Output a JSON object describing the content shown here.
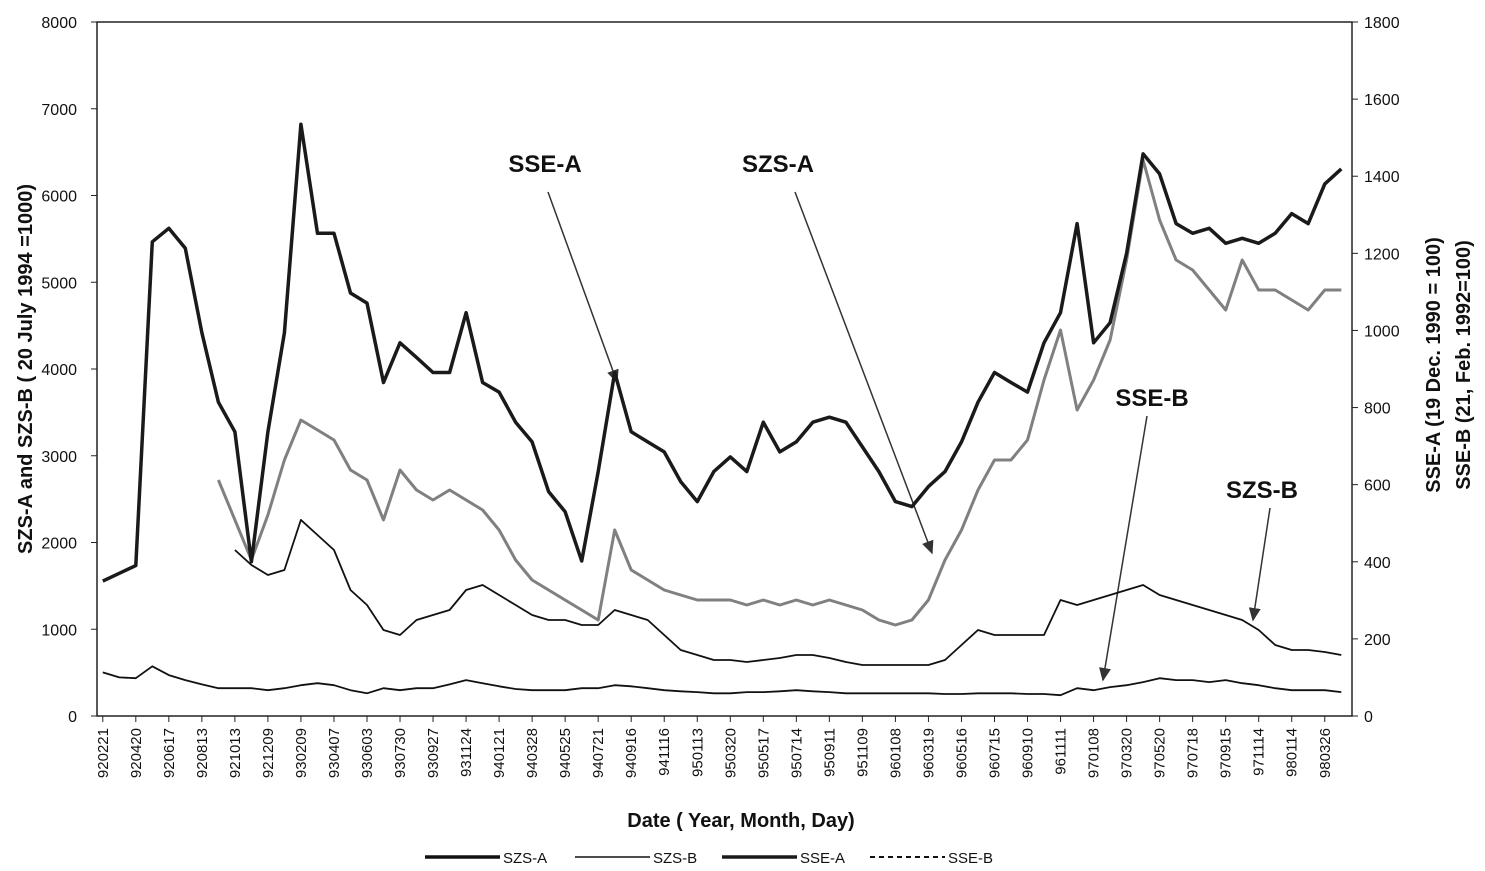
{
  "chart_data": {
    "type": "line",
    "xlabel": "Date ( Year, Month, Day)",
    "ylabel": "SZS-A and SZS-B ( 20 July 1994 =1000)",
    "y2label": [
      "SSE-A (19 Dec. 1990 = 100)",
      "SSE-B (21, Feb. 1992=100)"
    ],
    "annotations": [
      "SSE-A",
      "SZS-A",
      "SSE-B",
      "SZS-B"
    ],
    "categories": [
      "920221",
      null,
      "920420",
      null,
      "920617",
      null,
      "920813",
      null,
      "921013",
      null,
      "921209",
      null,
      "930209",
      null,
      "930407",
      null,
      "930603",
      null,
      "930730",
      null,
      "930927",
      null,
      "931124",
      null,
      "940121",
      null,
      "940328",
      null,
      "940525",
      null,
      "940721",
      null,
      "940916",
      null,
      "941116",
      null,
      "950113",
      null,
      "950320",
      null,
      "950517",
      null,
      "950714",
      null,
      "950911",
      null,
      "951109",
      null,
      "960108",
      null,
      "960319",
      null,
      "960516",
      null,
      "960715",
      null,
      "960910",
      null,
      "961111",
      null,
      "970108",
      null,
      "970320",
      null,
      "970520",
      null,
      "970718",
      null,
      "970915",
      null,
      "971114",
      null,
      "980114",
      null,
      "980326",
      null
    ],
    "ylim": [
      0,
      8000
    ],
    "yticks": [
      0,
      1000,
      2000,
      3000,
      4000,
      5000,
      6000,
      7000,
      8000
    ],
    "y2lim": [
      0,
      1800
    ],
    "y2ticks": [
      0,
      200,
      400,
      600,
      800,
      1000,
      1200,
      1400,
      1600,
      1800
    ],
    "series": [
      {
        "name": "SZS-A",
        "color": "#808080",
        "values": [
          null,
          null,
          null,
          null,
          null,
          null,
          null,
          2720,
          2260,
          1800,
          2317,
          2951,
          3412,
          3297,
          3182,
          2836,
          2720,
          2260,
          2836,
          2605,
          2490,
          2605,
          2490,
          2375,
          2144,
          1798,
          1568,
          1452,
          1337,
          1222,
          1107,
          2144,
          1683,
          1568,
          1452,
          1395,
          1337,
          1337,
          1337,
          1280,
          1337,
          1280,
          1337,
          1280,
          1337,
          1280,
          1222,
          1107,
          1049,
          1107,
          1337,
          1798,
          2144,
          2605,
          2951,
          2951,
          3182,
          3873,
          4450,
          3527,
          3873,
          4334,
          5256,
          6409,
          5718,
          5256,
          5141,
          4911,
          4680,
          5256,
          4911,
          4911,
          4795,
          4680,
          4911,
          4911
        ]
      },
      {
        "name": "SZS-B",
        "color": "#111111",
        "values": [
          null,
          null,
          null,
          null,
          null,
          null,
          null,
          null,
          1914,
          1741,
          1625,
          1683,
          2260,
          2086,
          1914,
          1452,
          1280,
          991,
          934,
          1107,
          1164,
          1222,
          1452,
          1510,
          1395,
          1280,
          1164,
          1107,
          1107,
          1049,
          1049,
          1222,
          1164,
          1107,
          934,
          761,
          703,
          646,
          646,
          622,
          646,
          669,
          703,
          703,
          669,
          622,
          588,
          588,
          588,
          588,
          588,
          646,
          818,
          991,
          934,
          934,
          934,
          934,
          1337,
          1280,
          1337,
          1395,
          1452,
          1510,
          1395,
          1337,
          1280,
          1222,
          1164,
          1107,
          991,
          818,
          761,
          761,
          738,
          703
        ]
      },
      {
        "name": "SSE-A",
        "color": "#1a1a1a",
        "axis": "y2",
        "values": [
          350,
          370,
          390,
          1230,
          1265,
          1213,
          994,
          814,
          737,
          400,
          737,
          994,
          1535,
          1252,
          1252,
          1097,
          1071,
          865,
          968,
          930,
          891,
          891,
          1046,
          865,
          840,
          762,
          711,
          582,
          530,
          402,
          634,
          891,
          737,
          711,
          685,
          608,
          556,
          634,
          672,
          634,
          762,
          685,
          711,
          762,
          775,
          762,
          698,
          634,
          556,
          543,
          595,
          634,
          711,
          814,
          891,
          865,
          840,
          968,
          1046,
          1277,
          968,
          1020,
          1200,
          1458,
          1406,
          1277,
          1252,
          1265,
          1226,
          1239,
          1226,
          1252,
          1303,
          1277,
          1380,
          1419
        ]
      },
      {
        "name": "SSE-B",
        "color": "#111111",
        "axis": "y2",
        "values": [
          113,
          100,
          98,
          129,
          106,
          93,
          82,
          72,
          72,
          72,
          67,
          72,
          80,
          85,
          80,
          67,
          59,
          72,
          67,
          72,
          72,
          82,
          93,
          85,
          77,
          70,
          67,
          67,
          67,
          72,
          72,
          80,
          77,
          72,
          67,
          64,
          62,
          59,
          59,
          62,
          62,
          64,
          67,
          64,
          62,
          59,
          59,
          59,
          59,
          59,
          59,
          57,
          57,
          59,
          59,
          59,
          57,
          57,
          54,
          72,
          67,
          75,
          80,
          88,
          98,
          93,
          93,
          88,
          93,
          85,
          80,
          72,
          67,
          67,
          67,
          62
        ]
      }
    ]
  }
}
